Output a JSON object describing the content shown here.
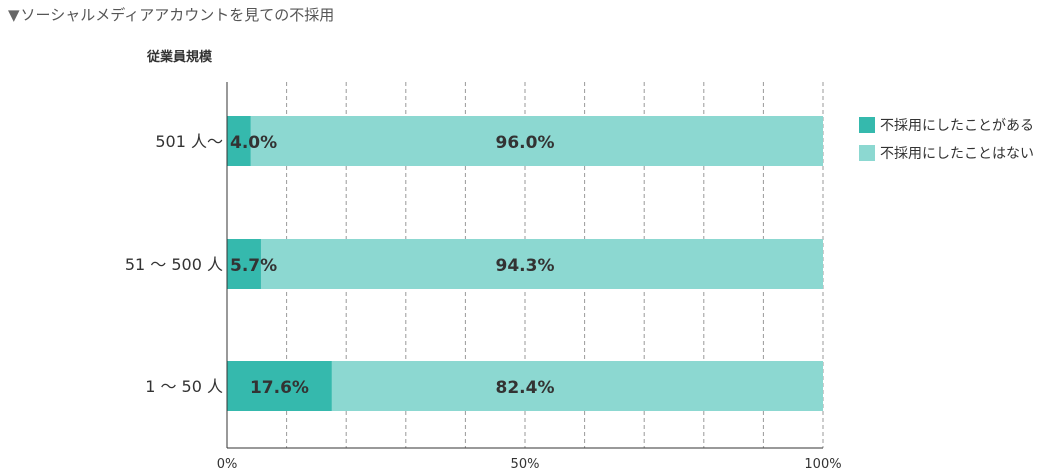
{
  "chart_data": {
    "type": "bar",
    "orientation": "horizontal",
    "stacked": true,
    "title": "ソーシャルメディアアカウントを見ての不採用",
    "title_marker": "▼",
    "ylabel": "従業員規模",
    "categories": [
      "501 人〜",
      "51 〜 500 人",
      "1 〜 50 人"
    ],
    "series": [
      {
        "name": "不採用にしたことがある",
        "values": [
          4.0,
          5.7,
          17.6
        ],
        "color": "#35b9ad"
      },
      {
        "name": "不採用にしたことはない",
        "values": [
          96.0,
          94.3,
          82.4
        ],
        "color": "#8cd8d1"
      }
    ],
    "data_labels": [
      [
        "4.0%",
        "5.7%",
        "17.6%"
      ],
      [
        "96.0%",
        "94.3%",
        "82.4%"
      ]
    ],
    "xlim": [
      0,
      100
    ],
    "x_ticks": [
      0,
      50,
      100
    ],
    "x_tick_labels": [
      "0%",
      "50%",
      "100%"
    ],
    "grid": true,
    "legend": "right"
  }
}
